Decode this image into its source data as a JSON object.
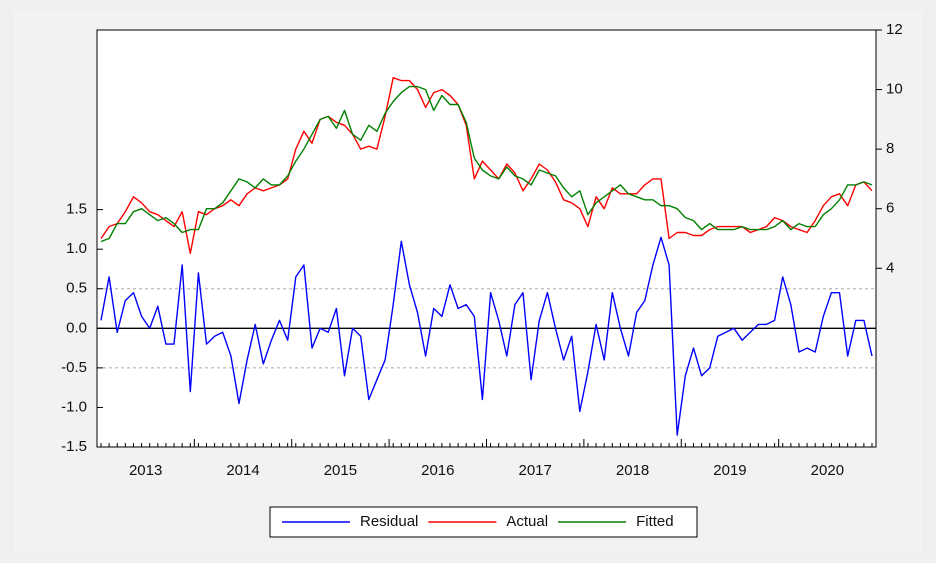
{
  "chart_data": {
    "type": "line",
    "categories": [
      null,
      null,
      null,
      null,
      null,
      null,
      "2013",
      null,
      null,
      null,
      null,
      null,
      null,
      null,
      null,
      null,
      null,
      null,
      "2014",
      null,
      null,
      null,
      null,
      null,
      null,
      null,
      null,
      null,
      null,
      null,
      "2015",
      null,
      null,
      null,
      null,
      null,
      null,
      null,
      null,
      null,
      null,
      null,
      "2016",
      null,
      null,
      null,
      null,
      null,
      null,
      null,
      null,
      null,
      null,
      null,
      "2017",
      null,
      null,
      null,
      null,
      null,
      null,
      null,
      null,
      null,
      null,
      null,
      "2018",
      null,
      null,
      null,
      null,
      null,
      null,
      null,
      null,
      null,
      null,
      null,
      "2019",
      null,
      null,
      null,
      null,
      null,
      null,
      null,
      null,
      null,
      null,
      null,
      "2020",
      null,
      null,
      null,
      null,
      null
    ],
    "series": [
      {
        "name": "Residual",
        "color": "#0000ff",
        "values": [
          0.1,
          0.65,
          -0.05,
          0.35,
          0.45,
          0.15,
          0.0,
          0.28,
          -0.2,
          -0.2,
          0.8,
          -0.8,
          0.7,
          -0.2,
          -0.1,
          -0.05,
          -0.35,
          -0.95,
          -0.4,
          0.05,
          -0.45,
          -0.15,
          0.1,
          -0.15,
          0.65,
          0.8,
          -0.25,
          0.0,
          -0.05,
          0.25,
          -0.6,
          0.0,
          -0.1,
          -0.9,
          -0.65,
          -0.4,
          0.3,
          1.1,
          0.55,
          0.2,
          -0.35,
          0.25,
          0.15,
          0.55,
          0.25,
          0.3,
          0.15,
          -0.9,
          0.45,
          0.1,
          -0.35,
          0.3,
          0.45,
          -0.65,
          0.1,
          0.45,
          0.0,
          -0.4,
          -0.1,
          -1.05,
          -0.55,
          0.05,
          -0.4,
          0.45,
          0.0,
          -0.35,
          0.2,
          0.35,
          0.8,
          1.15,
          0.8,
          -1.35,
          -0.6,
          -0.25,
          -0.6,
          -0.5,
          -0.1,
          -0.05,
          0.0,
          -0.15,
          -0.05,
          0.05,
          0.05,
          0.1,
          0.65,
          0.3,
          -0.3,
          -0.25,
          -0.3,
          0.15,
          0.45,
          0.45,
          -0.35,
          0.1,
          0.1,
          -0.35
        ]
      },
      {
        "name": "Actual",
        "color": "#ff0000",
        "axis": "y2",
        "values": [
          5.0,
          5.4,
          5.5,
          5.9,
          6.4,
          6.2,
          5.9,
          5.8,
          5.6,
          5.4,
          5.9,
          4.5,
          5.9,
          5.8,
          6.0,
          6.1,
          6.3,
          6.1,
          6.5,
          6.7,
          6.6,
          6.7,
          6.8,
          7.0,
          8.0,
          8.6,
          8.2,
          9.0,
          9.1,
          8.9,
          8.8,
          8.5,
          8.0,
          8.1,
          8.0,
          9.1,
          10.4,
          10.3,
          10.3,
          10.0,
          9.4,
          9.9,
          10.0,
          9.8,
          9.5,
          8.8,
          7.0,
          7.6,
          7.3,
          7.0,
          7.5,
          7.2,
          6.6,
          7.0,
          7.5,
          7.3,
          6.9,
          6.3,
          6.2,
          6.0,
          5.4,
          6.4,
          6.0,
          6.7,
          6.5,
          6.5,
          6.5,
          6.8,
          7.0,
          7.0,
          5.0,
          5.2,
          5.2,
          5.1,
          5.1,
          5.3,
          5.4,
          5.4,
          5.4,
          5.4,
          5.2,
          5.3,
          5.4,
          5.7,
          5.6,
          5.4,
          5.3,
          5.2,
          5.6,
          6.1,
          6.4,
          6.5,
          6.1,
          6.8,
          6.9,
          6.6
        ]
      },
      {
        "name": "Fitted",
        "color": "#008000",
        "axis": "y2",
        "values": [
          4.9,
          5.0,
          5.5,
          5.5,
          5.9,
          6.0,
          5.8,
          5.6,
          5.7,
          5.5,
          5.2,
          5.3,
          5.3,
          6.0,
          6.0,
          6.2,
          6.6,
          7.0,
          6.9,
          6.7,
          7.0,
          6.8,
          6.8,
          7.1,
          7.6,
          8.0,
          8.5,
          9.0,
          9.1,
          8.7,
          9.3,
          8.5,
          8.3,
          8.8,
          8.6,
          9.2,
          9.6,
          9.9,
          10.1,
          10.1,
          10.0,
          9.3,
          9.8,
          9.5,
          9.5,
          8.9,
          7.7,
          7.3,
          7.1,
          7.0,
          7.4,
          7.1,
          7.0,
          6.8,
          7.3,
          7.2,
          7.1,
          6.7,
          6.4,
          6.6,
          5.8,
          6.2,
          6.4,
          6.6,
          6.8,
          6.5,
          6.4,
          6.3,
          6.3,
          6.1,
          6.1,
          6.0,
          5.7,
          5.6,
          5.3,
          5.5,
          5.3,
          5.3,
          5.3,
          5.4,
          5.3,
          5.3,
          5.3,
          5.4,
          5.6,
          5.3,
          5.5,
          5.4,
          5.4,
          5.8,
          6.0,
          6.3,
          6.8,
          6.8,
          6.9,
          6.8
        ]
      }
    ],
    "ylim": [
      -1.5,
      3.77
    ],
    "yticks": [
      -1.5,
      {
        "value": -1,
        "label": "-1.0"
      },
      -0.5,
      {
        "value": 0,
        "label": "0.0"
      },
      0.5,
      {
        "value": 1,
        "label": "1.0"
      },
      1.5
    ],
    "y2lim": [
      -2,
      12
    ],
    "y2ticks": [
      4,
      6,
      8,
      10,
      12
    ],
    "reference_lines": [
      {
        "value": 0,
        "style": "solid"
      },
      {
        "value": 0.5,
        "style": "dashed"
      },
      {
        "value": -0.5,
        "style": "dashed"
      }
    ],
    "legend": "bottom"
  }
}
